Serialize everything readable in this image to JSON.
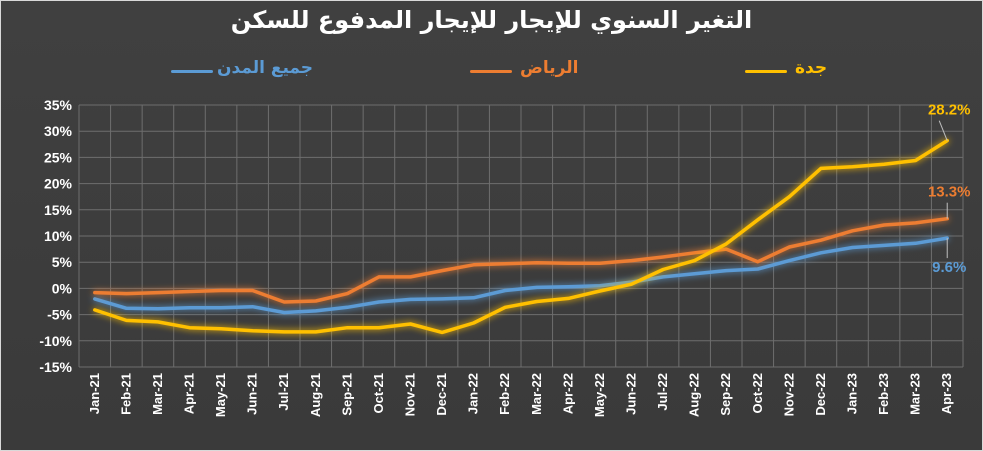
{
  "chart_data": {
    "type": "line",
    "title": "التغير السنوي للإيجار للإيجار المدفوع للسكن",
    "categories": [
      "Jan-21",
      "Feb-21",
      "Mar-21",
      "Apr-21",
      "May-21",
      "Jun-21",
      "Jul-21",
      "Aug-21",
      "Sep-21",
      "Oct-21",
      "Nov-21",
      "Dec-21",
      "Jan-22",
      "Feb-22",
      "Mar-22",
      "Apr-22",
      "May-22",
      "Jun-22",
      "Jul-22",
      "Aug-22",
      "Sep-22",
      "Oct-22",
      "Nov-22",
      "Dec-22",
      "Jan-23",
      "Feb-23",
      "Mar-23",
      "Apr-23"
    ],
    "y_ticks": [
      "35%",
      "30%",
      "25%",
      "20%",
      "15%",
      "10%",
      "5%",
      "0%",
      "-5%",
      "-10%",
      "-15%"
    ],
    "ylim": [
      -15,
      35
    ],
    "grid": true,
    "legend_position": "top",
    "series": [
      {
        "name": "جدة",
        "color": "#ffc000",
        "end_label": "28.2%",
        "values": [
          -4.1,
          -6.1,
          -6.4,
          -7.5,
          -7.7,
          -8.1,
          -8.3,
          -8.3,
          -7.5,
          -7.5,
          -6.8,
          -8.4,
          -6.6,
          -3.6,
          -2.5,
          -1.9,
          -0.5,
          0.8,
          3.6,
          5.3,
          8.5,
          13.1,
          17.5,
          22.9,
          23.2,
          23.7,
          24.4,
          28.2
        ]
      },
      {
        "name": "الرياض",
        "color": "#ed7d31",
        "end_label": "13.3%",
        "values": [
          -0.8,
          -1.0,
          -0.8,
          -0.6,
          -0.4,
          -0.4,
          -2.6,
          -2.4,
          -1.0,
          2.2,
          2.2,
          3.4,
          4.5,
          4.7,
          4.9,
          4.8,
          4.8,
          5.3,
          6.0,
          6.8,
          7.5,
          5.1,
          7.9,
          9.2,
          11.0,
          12.1,
          12.5,
          13.3
        ]
      },
      {
        "name": "جميع المدن",
        "color": "#5b9bd5",
        "end_label": "9.6%",
        "values": [
          -2.0,
          -3.8,
          -3.9,
          -3.7,
          -3.7,
          -3.5,
          -4.6,
          -4.3,
          -3.6,
          -2.6,
          -2.1,
          -2.0,
          -1.8,
          -0.4,
          0.2,
          0.3,
          0.5,
          1.2,
          2.2,
          2.8,
          3.4,
          3.7,
          5.3,
          6.8,
          7.8,
          8.2,
          8.6,
          9.6
        ]
      }
    ]
  }
}
